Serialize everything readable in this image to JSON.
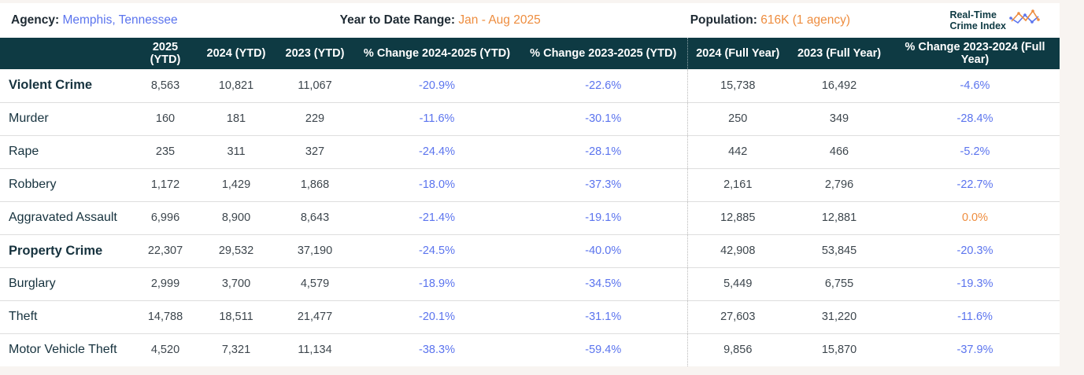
{
  "header": {
    "agency_label": "Agency:",
    "agency_value": "Memphis, Tennessee",
    "ytd_range_label": "Year to Date Range:",
    "ytd_range_value": "Jan - Aug 2025",
    "population_label": "Population:",
    "population_value": "616K (1 agency)",
    "logo_line1": "Real-Time",
    "logo_line2": "Crime Index"
  },
  "colors": {
    "header_teal": "#0e3a43",
    "accent_blue": "#5b74ee",
    "accent_orange": "#ee8d3f",
    "row_border": "#dedede",
    "page_background": "#f8f4f1"
  },
  "table": {
    "columns": [
      "2025 (YTD)",
      "2024 (YTD)",
      "2023 (YTD)",
      "% Change 2024-2025 (YTD)",
      "% Change 2023-2025 (YTD)",
      "2024 (Full Year)",
      "2023 (Full Year)",
      "% Change 2023-2024 (Full Year)"
    ],
    "full_year_start_index": 5,
    "rows": [
      {
        "label": "Violent Crime",
        "bold": true,
        "values": [
          "8,563",
          "10,821",
          "11,067",
          "-20.9%",
          "-22.6%",
          "15,738",
          "16,492",
          "-4.6%"
        ]
      },
      {
        "label": "Murder",
        "bold": false,
        "values": [
          "160",
          "181",
          "229",
          "-11.6%",
          "-30.1%",
          "250",
          "349",
          "-28.4%"
        ]
      },
      {
        "label": "Rape",
        "bold": false,
        "values": [
          "235",
          "311",
          "327",
          "-24.4%",
          "-28.1%",
          "442",
          "466",
          "-5.2%"
        ]
      },
      {
        "label": "Robbery",
        "bold": false,
        "values": [
          "1,172",
          "1,429",
          "1,868",
          "-18.0%",
          "-37.3%",
          "2,161",
          "2,796",
          "-22.7%"
        ]
      },
      {
        "label": "Aggravated Assault",
        "bold": false,
        "values": [
          "6,996",
          "8,900",
          "8,643",
          "-21.4%",
          "-19.1%",
          "12,885",
          "12,881",
          "0.0%"
        ]
      },
      {
        "label": "Property Crime",
        "bold": true,
        "values": [
          "22,307",
          "29,532",
          "37,190",
          "-24.5%",
          "-40.0%",
          "42,908",
          "53,845",
          "-20.3%"
        ]
      },
      {
        "label": "Burglary",
        "bold": false,
        "values": [
          "2,999",
          "3,700",
          "4,579",
          "-18.9%",
          "-34.5%",
          "5,449",
          "6,755",
          "-19.3%"
        ]
      },
      {
        "label": "Theft",
        "bold": false,
        "values": [
          "14,788",
          "18,511",
          "21,477",
          "-20.1%",
          "-31.1%",
          "27,603",
          "31,220",
          "-11.6%"
        ]
      },
      {
        "label": "Motor Vehicle Theft",
        "bold": false,
        "values": [
          "4,520",
          "7,321",
          "11,134",
          "-38.3%",
          "-59.4%",
          "9,856",
          "15,870",
          "-37.9%"
        ]
      }
    ]
  }
}
